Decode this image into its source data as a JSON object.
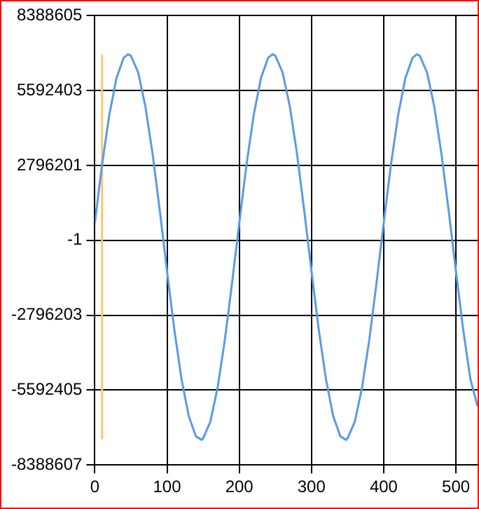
{
  "chart_data": {
    "type": "line",
    "x": [
      0,
      10,
      20,
      30,
      40,
      46,
      50,
      60,
      70,
      80,
      90,
      100,
      110,
      120,
      130,
      140,
      148,
      150,
      160,
      170,
      180,
      190,
      200,
      210,
      220,
      230,
      240,
      246,
      250,
      260,
      270,
      280,
      290,
      300,
      310,
      320,
      330,
      340,
      348,
      350,
      360,
      370,
      380,
      390,
      400,
      410,
      420,
      430,
      440,
      446,
      450,
      460,
      470,
      480,
      490,
      500,
      510,
      520,
      530
    ],
    "series": [
      {
        "color": "#5b9ae6",
        "values": [
          650000,
          2820000,
          4680000,
          6060000,
          6820000,
          6950000,
          6890000,
          6270000,
          5000000,
          3220000,
          1100000,
          -1150000,
          -3320000,
          -5180000,
          -6560000,
          -7320000,
          -7450000,
          -7390000,
          -6770000,
          -5500000,
          -3720000,
          -1600000,
          650000,
          2820000,
          4680000,
          6060000,
          6820000,
          6950000,
          6890000,
          6270000,
          5000000,
          3220000,
          1100000,
          -1150000,
          -3320000,
          -5180000,
          -6560000,
          -7320000,
          -7450000,
          -7390000,
          -6770000,
          -5500000,
          -3720000,
          -1600000,
          650000,
          2820000,
          4680000,
          6060000,
          6820000,
          6950000,
          6890000,
          6270000,
          5000000,
          3220000,
          1100000,
          -1150000,
          -3320000,
          -5180000,
          -6200000
        ]
      },
      {
        "color": "#ffc66b",
        "x": [
          10,
          10
        ],
        "values": [
          6900000,
          -7400000
        ]
      }
    ],
    "xlim": [
      0,
      530
    ],
    "xticks": [
      0,
      100,
      200,
      300,
      400,
      500
    ],
    "ylim": [
      -8388607,
      8388605
    ],
    "yticks": [
      -8388607,
      -5592405,
      -2796203,
      -1,
      2796201,
      5592403,
      8388605
    ],
    "grid": true,
    "legend": false,
    "marker": "none",
    "line_style": "solid"
  }
}
